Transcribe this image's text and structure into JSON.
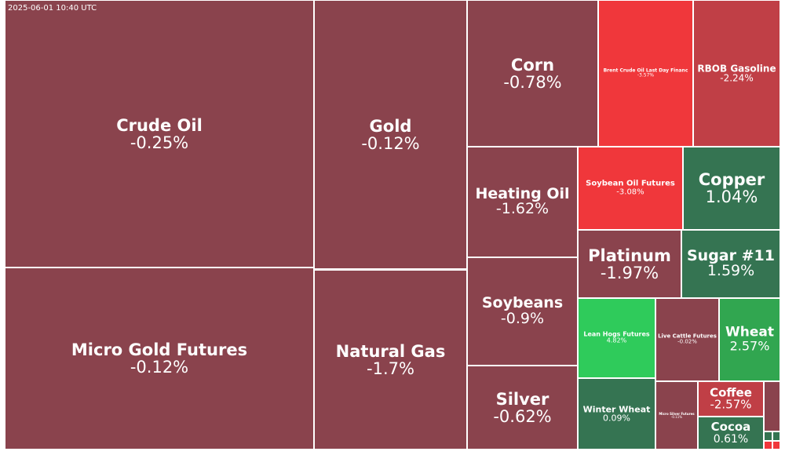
{
  "timestamp": "2025-06-01 10:40 UTC",
  "tiles": {
    "crude_oil": {
      "name": "Crude Oil",
      "change": "-0.25%"
    },
    "micro_gold": {
      "name": "Micro Gold Futures",
      "change": "-0.12%"
    },
    "gold": {
      "name": "Gold",
      "change": "-0.12%"
    },
    "natural_gas": {
      "name": "Natural Gas",
      "change": "-1.7%"
    },
    "corn": {
      "name": "Corn",
      "change": "-0.78%"
    },
    "brent": {
      "name": "Brent Crude Oil Last Day Financ",
      "change": "-3.57%"
    },
    "rbob": {
      "name": "RBOB Gasoline",
      "change": "-2.24%"
    },
    "heating_oil": {
      "name": "Heating Oil",
      "change": "-1.62%"
    },
    "soybean_oil": {
      "name": "Soybean Oil Futures",
      "change": "-3.08%"
    },
    "copper": {
      "name": "Copper",
      "change": "1.04%"
    },
    "platinum": {
      "name": "Platinum",
      "change": "-1.97%"
    },
    "sugar": {
      "name": "Sugar #11",
      "change": "1.59%"
    },
    "soybeans": {
      "name": "Soybeans",
      "change": "-0.9%"
    },
    "lean_hogs": {
      "name": "Lean Hogs Futures",
      "change": "4.82%"
    },
    "live_cattle": {
      "name": "Live Cattle Futures",
      "change": "-0.02%"
    },
    "wheat": {
      "name": "Wheat",
      "change": "2.57%"
    },
    "silver": {
      "name": "Silver",
      "change": "-0.62%"
    },
    "winter_wheat": {
      "name": "Winter Wheat",
      "change": "0.09%"
    },
    "micro_silver": {
      "name": "Micro Silver Futures",
      "change": "-0.11%"
    },
    "coffee": {
      "name": "Coffee",
      "change": "-2.57%"
    },
    "cocoa": {
      "name": "Cocoa",
      "change": "0.61%"
    }
  },
  "colors": {
    "slight_down": "#8a434d",
    "strong_down": "#f0373b",
    "moderate_down": "#c03f46",
    "slight_up": "#357452",
    "moderate_up": "#31a650",
    "strong_up": "#2fcb5b"
  }
}
